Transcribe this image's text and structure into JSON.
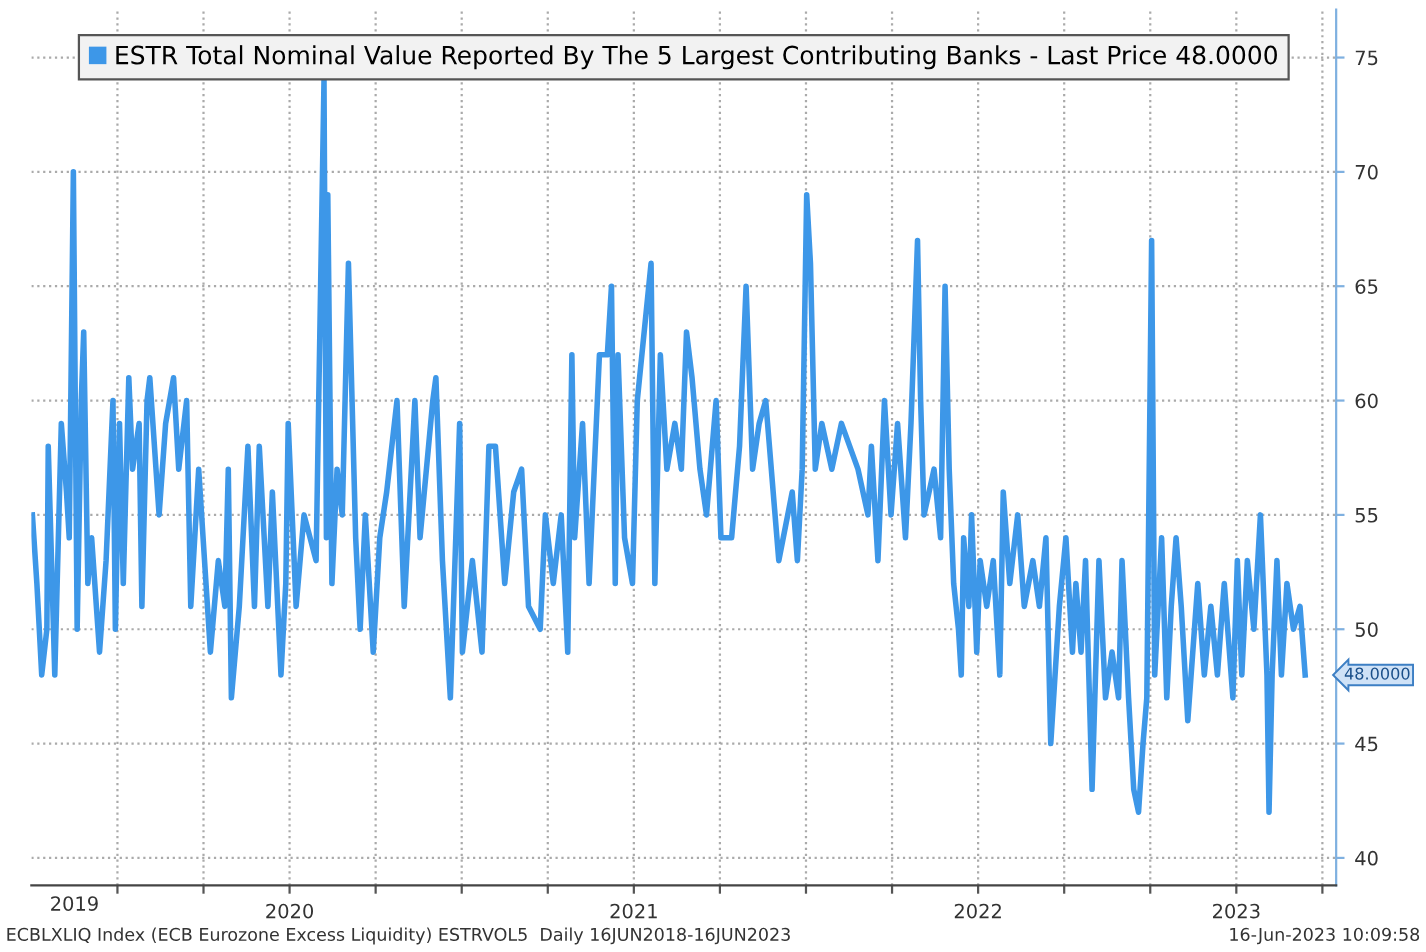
{
  "chart_data": {
    "type": "line",
    "series": [
      {
        "name": "ESTR Total Nominal Value Reported By The 5 Largest Contributing Banks - Last Price 48.0000",
        "color": "#3d97e8",
        "x": [
          2019.753,
          2019.766,
          2019.78,
          2019.795,
          2019.799,
          2019.818,
          2019.837,
          2019.852,
          2019.86,
          2019.872,
          2019.883,
          2019.895,
          2019.902,
          2019.914,
          2019.925,
          2019.948,
          2019.967,
          2019.987,
          2019.994,
          2020.006,
          2020.017,
          2020.033,
          2020.044,
          2020.063,
          2020.071,
          2020.086,
          2020.094,
          2020.121,
          2020.14,
          2020.163,
          2020.178,
          2020.201,
          2020.213,
          2020.236,
          2020.27,
          2020.293,
          2020.312,
          2020.322,
          2020.331,
          2020.354,
          2020.379,
          2020.398,
          2020.412,
          2020.437,
          2020.45,
          2020.475,
          2020.489,
          2020.496,
          2020.519,
          2020.542,
          2020.577,
          2020.6,
          2020.607,
          2020.611,
          2020.623,
          2020.638,
          2020.653,
          2020.671,
          2020.692,
          2020.705,
          2020.72,
          2020.743,
          2020.762,
          2020.782,
          2020.812,
          2020.833,
          2020.864,
          2020.879,
          2020.916,
          2020.925,
          2020.944,
          2020.967,
          2020.994,
          2021.002,
          2021.031,
          2021.059,
          2021.079,
          2021.098,
          2021.125,
          2021.151,
          2021.174,
          2021.194,
          2021.228,
          2021.243,
          2021.266,
          2021.289,
          2021.308,
          2021.32,
          2021.328,
          2021.351,
          2021.37,
          2021.4,
          2021.423,
          2021.435,
          2021.446,
          2021.454,
          2021.473,
          2021.496,
          2021.51,
          2021.55,
          2021.561,
          2021.577,
          2021.596,
          2021.619,
          2021.638,
          2021.653,
          2021.669,
          2021.692,
          2021.711,
          2021.739,
          2021.753,
          2021.784,
          2021.807,
          2021.826,
          2021.845,
          2021.864,
          2021.883,
          2021.921,
          2021.96,
          2021.975,
          2021.989,
          2022.002,
          2022.013,
          2022.027,
          2022.046,
          2022.075,
          2022.103,
          2022.151,
          2022.18,
          2022.19,
          2022.209,
          2022.228,
          2022.247,
          2022.266,
          2022.289,
          2022.305,
          2022.324,
          2022.333,
          2022.343,
          2022.372,
          2022.391,
          2022.404,
          2022.416,
          2022.429,
          2022.443,
          2022.451,
          2022.458,
          2022.473,
          2022.481,
          2022.496,
          2022.506,
          2022.525,
          2022.544,
          2022.563,
          2022.573,
          2022.592,
          2022.615,
          2022.634,
          2022.659,
          2022.678,
          2022.697,
          2022.711,
          2022.736,
          2022.755,
          2022.774,
          2022.784,
          2022.799,
          2022.812,
          2022.831,
          2022.851,
          2022.87,
          2022.889,
          2022.908,
          2022.918,
          2022.937,
          2022.952,
          2022.966,
          2022.979,
          2022.99,
          2023.004,
          2023.013,
          2023.033,
          2023.048,
          2023.061,
          2023.075,
          2023.09,
          2023.109,
          2023.138,
          2023.157,
          2023.176,
          2023.195,
          2023.215,
          2023.24,
          2023.253,
          2023.266,
          2023.282,
          2023.301,
          2023.32,
          2023.339,
          2023.345,
          2023.354,
          2023.368,
          2023.381,
          2023.397,
          2023.416,
          2023.435,
          2023.45
        ],
        "values": [
          55,
          52,
          48,
          50,
          58,
          48,
          59,
          56,
          54,
          70,
          50,
          60,
          63,
          52,
          54,
          49,
          53,
          60,
          50,
          59,
          52,
          61,
          57,
          59,
          51,
          60,
          61,
          55,
          59,
          61,
          57,
          60,
          51,
          57,
          49,
          53,
          51,
          57,
          47,
          51,
          58,
          51,
          58,
          51,
          56,
          48,
          52,
          59,
          51,
          55,
          53,
          74,
          54,
          69,
          52,
          57,
          55,
          66,
          54,
          50,
          55,
          49,
          54,
          56,
          60,
          51,
          60,
          54,
          60,
          61,
          53,
          47,
          59,
          49,
          53,
          49,
          58,
          58,
          52,
          56,
          57,
          51,
          50,
          55,
          52,
          55,
          49,
          62,
          54,
          59,
          52,
          62,
          62,
          65,
          52,
          62,
          54,
          52,
          60,
          66,
          52,
          62,
          57,
          59,
          57,
          63,
          61,
          57,
          55,
          60,
          54,
          54,
          58,
          65,
          57,
          59,
          60,
          53,
          56,
          53,
          57,
          69,
          66,
          57,
          59,
          57,
          59,
          57,
          55,
          58,
          53,
          60,
          55,
          59,
          54,
          59,
          67,
          60,
          55,
          57,
          54,
          65,
          57,
          52,
          50,
          48,
          54,
          51,
          55,
          49,
          53,
          51,
          53,
          48,
          56,
          52,
          55,
          51,
          53,
          51,
          54,
          45,
          51,
          54,
          49,
          52,
          49,
          53,
          43,
          53,
          47,
          49,
          47,
          53,
          47,
          43,
          42,
          45,
          47,
          67,
          48,
          54,
          47,
          51,
          54,
          51,
          46,
          52,
          48,
          51,
          48,
          52,
          47,
          53,
          48,
          53,
          50,
          55,
          48,
          42,
          48,
          53,
          48,
          52,
          50,
          51,
          48
        ]
      }
    ],
    "xlim": [
      2019.75,
      2023.54
    ],
    "ylim": [
      38.8,
      77.1
    ],
    "xticks": [
      {
        "value": 2020.0,
        "label": null
      },
      {
        "value": 2020.25,
        "label": null
      },
      {
        "value": 2020.5,
        "label": "2020"
      },
      {
        "value": 2020.75,
        "label": null
      },
      {
        "value": 2021.0,
        "label": null
      },
      {
        "value": 2021.25,
        "label": null
      },
      {
        "value": 2021.5,
        "label": "2021"
      },
      {
        "value": 2021.75,
        "label": null
      },
      {
        "value": 2022.0,
        "label": null
      },
      {
        "value": 2022.25,
        "label": null
      },
      {
        "value": 2022.5,
        "label": "2022"
      },
      {
        "value": 2022.75,
        "label": null
      },
      {
        "value": 2023.0,
        "label": null
      },
      {
        "value": 2023.25,
        "label": "2023"
      },
      {
        "value": 2023.5,
        "label": null
      }
    ],
    "yticks": [
      40,
      45,
      50,
      55,
      60,
      65,
      70,
      75
    ],
    "grid": true,
    "legend": "top",
    "marker": "none",
    "line_style": "solid",
    "annotations": [
      "48.0000",
      "ECBLXLIQ Index (ECB Eurozone Excess Liquidity) ESTRVOL5  Daily 16JUN2018-16JUN2023",
      "16-Jun-2023 10:09:58",
      "2019"
    ]
  }
}
